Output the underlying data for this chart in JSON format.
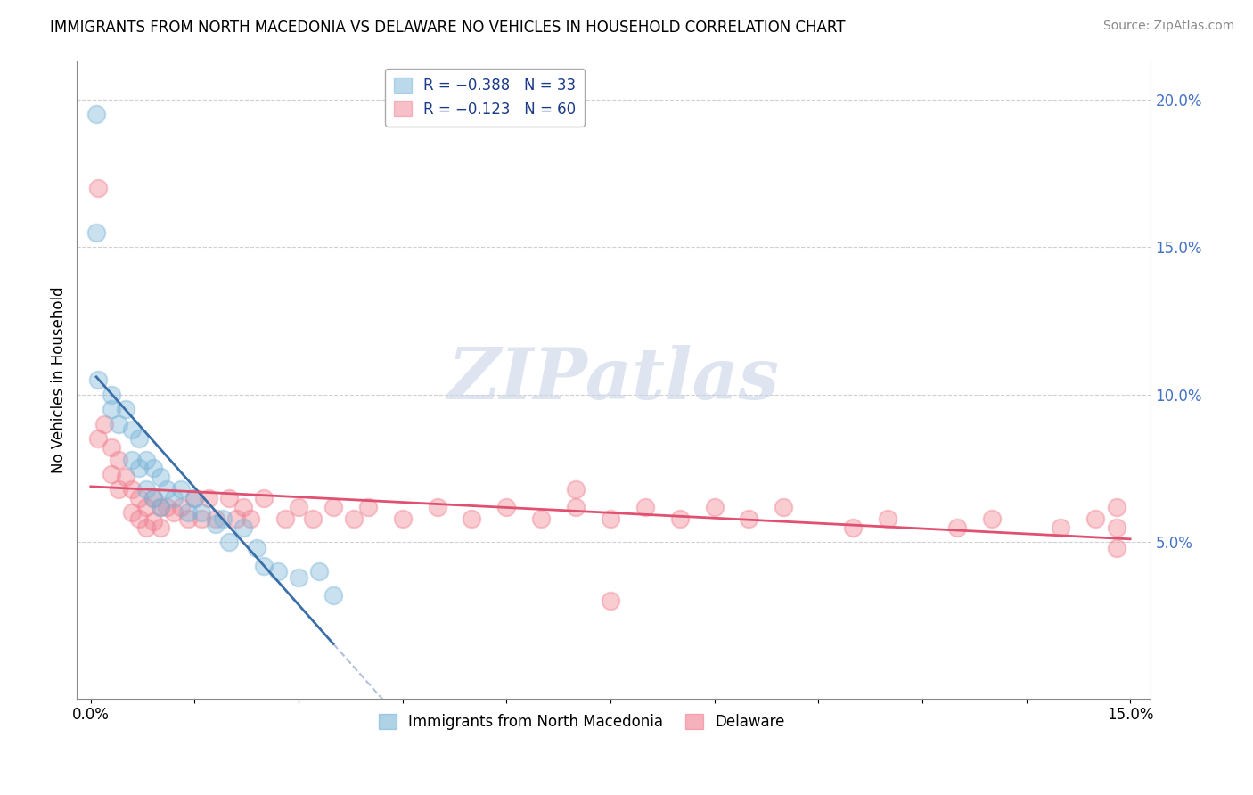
{
  "title": "IMMIGRANTS FROM NORTH MACEDONIA VS DELAWARE NO VEHICLES IN HOUSEHOLD CORRELATION CHART",
  "source": "Source: ZipAtlas.com",
  "ylabel": "No Vehicles in Household",
  "xlim": [
    0.0,
    0.15
  ],
  "ylim": [
    0.0,
    0.21
  ],
  "xtick_positions": [
    0.0,
    0.015,
    0.03,
    0.045,
    0.06,
    0.075,
    0.09,
    0.105,
    0.12,
    0.135,
    0.15
  ],
  "xtick_labels_shown": {
    "0.0": "0.0%",
    "0.15": "15.0%"
  },
  "yticks_right": [
    0.05,
    0.1,
    0.15,
    0.2
  ],
  "ytick_labels_right": [
    "5.0%",
    "10.0%",
    "15.0%",
    "20.0%"
  ],
  "legend_label1": "Immigrants from North Macedonia",
  "legend_label2": "Delaware",
  "series1_color": "#7ab4d8",
  "series2_color": "#f08090",
  "series1_line_color": "#3a6fa8",
  "series2_line_color": "#e05070",
  "series1_R": -0.388,
  "series1_N": 33,
  "series2_R": -0.123,
  "series2_N": 60,
  "watermark_color": "#d0d8e8",
  "watermark_text": "ZIPatlas",
  "grid_color": "#d0d0d0",
  "s1_x": [
    0.0008,
    0.0008,
    0.001,
    0.003,
    0.003,
    0.004,
    0.005,
    0.006,
    0.006,
    0.007,
    0.007,
    0.008,
    0.008,
    0.009,
    0.009,
    0.01,
    0.01,
    0.011,
    0.012,
    0.013,
    0.014,
    0.015,
    0.016,
    0.018,
    0.019,
    0.02,
    0.022,
    0.024,
    0.025,
    0.027,
    0.03,
    0.033,
    0.035
  ],
  "s1_y": [
    0.195,
    0.155,
    0.105,
    0.1,
    0.095,
    0.09,
    0.095,
    0.088,
    0.078,
    0.085,
    0.075,
    0.078,
    0.068,
    0.075,
    0.065,
    0.072,
    0.062,
    0.068,
    0.065,
    0.068,
    0.06,
    0.065,
    0.06,
    0.056,
    0.058,
    0.05,
    0.055,
    0.048,
    0.042,
    0.04,
    0.038,
    0.04,
    0.032
  ],
  "s2_x": [
    0.001,
    0.001,
    0.002,
    0.003,
    0.003,
    0.004,
    0.004,
    0.005,
    0.006,
    0.006,
    0.007,
    0.007,
    0.008,
    0.008,
    0.009,
    0.009,
    0.01,
    0.01,
    0.011,
    0.012,
    0.013,
    0.014,
    0.015,
    0.016,
    0.017,
    0.018,
    0.02,
    0.021,
    0.022,
    0.023,
    0.025,
    0.028,
    0.03,
    0.032,
    0.035,
    0.038,
    0.04,
    0.045,
    0.05,
    0.055,
    0.06,
    0.065,
    0.07,
    0.075,
    0.08,
    0.085,
    0.09,
    0.095,
    0.1,
    0.11,
    0.115,
    0.125,
    0.13,
    0.14,
    0.145,
    0.148,
    0.148,
    0.148,
    0.07,
    0.075
  ],
  "s2_y": [
    0.17,
    0.085,
    0.09,
    0.082,
    0.073,
    0.078,
    0.068,
    0.072,
    0.068,
    0.06,
    0.065,
    0.058,
    0.062,
    0.055,
    0.065,
    0.057,
    0.062,
    0.055,
    0.062,
    0.06,
    0.062,
    0.058,
    0.065,
    0.058,
    0.065,
    0.058,
    0.065,
    0.058,
    0.062,
    0.058,
    0.065,
    0.058,
    0.062,
    0.058,
    0.062,
    0.058,
    0.062,
    0.058,
    0.062,
    0.058,
    0.062,
    0.058,
    0.062,
    0.058,
    0.062,
    0.058,
    0.062,
    0.058,
    0.062,
    0.055,
    0.058,
    0.055,
    0.058,
    0.055,
    0.058,
    0.055,
    0.062,
    0.048,
    0.068,
    0.03
  ]
}
